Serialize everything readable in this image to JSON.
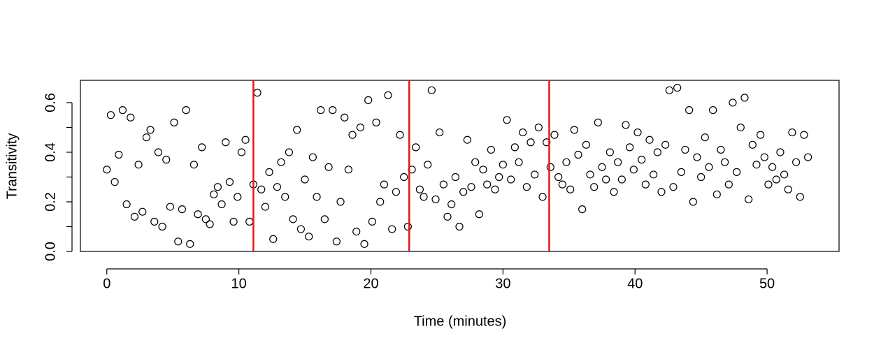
{
  "chart_data": {
    "type": "scatter",
    "x_label": "Time (minutes)",
    "y_label": "Transitivity",
    "xlim": [
      -2.0,
      55.45
    ],
    "ylim": [
      0,
      0.69
    ],
    "xticks": [
      0,
      10,
      20,
      30,
      40,
      50
    ],
    "yticks": [
      {
        "value": 0,
        "label": "0.0"
      },
      {
        "value": 0.2,
        "label": "0.2"
      },
      {
        "value": 0.4,
        "label": "0.4"
      },
      {
        "value": 0.6,
        "label": "0.6"
      }
    ],
    "y_minor_ticks": [
      0.1,
      0.3,
      0.5
    ],
    "vlines": [
      11.1,
      22.9,
      33.5
    ],
    "vline_color": "#e31a1c",
    "series": [
      {
        "color": "#000000",
        "x": [
          0,
          0.3,
          0.6,
          0.9,
          1.2,
          1.5,
          1.8,
          2.1,
          2.4,
          2.7,
          3,
          3.3,
          3.6,
          3.9,
          4.2,
          4.5,
          4.8,
          5.1,
          5.4,
          5.7,
          6,
          6.3,
          6.6,
          6.9,
          7.2,
          7.5,
          7.8,
          8.1,
          8.4,
          8.7,
          9,
          9.3,
          9.6,
          9.9,
          10.2,
          10.5,
          10.8,
          11.1,
          11.4,
          11.7,
          12,
          12.3,
          12.6,
          12.9,
          13.2,
          13.5,
          13.8,
          14.1,
          14.4,
          14.7,
          15,
          15.3,
          15.6,
          15.9,
          16.2,
          16.5,
          16.8,
          17.1,
          17.4,
          17.7,
          18,
          18.3,
          18.6,
          18.9,
          19.2,
          19.5,
          19.8,
          20.1,
          20.4,
          20.7,
          21,
          21.3,
          21.6,
          21.9,
          22.2,
          22.5,
          22.8,
          23.1,
          23.4,
          23.7,
          24,
          24.3,
          24.6,
          24.9,
          25.2,
          25.5,
          25.8,
          26.1,
          26.4,
          26.7,
          27,
          27.3,
          27.6,
          27.9,
          28.2,
          28.5,
          28.8,
          29.1,
          29.4,
          29.7,
          30,
          30.3,
          30.6,
          30.9,
          31.2,
          31.5,
          31.8,
          32.1,
          32.4,
          32.7,
          33,
          33.3,
          33.6,
          33.9,
          34.2,
          34.5,
          34.8,
          35.1,
          35.4,
          35.7,
          36,
          36.3,
          36.6,
          36.9,
          37.2,
          37.5,
          37.8,
          38.1,
          38.4,
          38.7,
          39,
          39.3,
          39.6,
          39.9,
          40.2,
          40.5,
          40.8,
          41.1,
          41.4,
          41.7,
          42,
          42.3,
          42.6,
          42.9,
          43.2,
          43.5,
          43.8,
          44.1,
          44.4,
          44.7,
          45,
          45.3,
          45.6,
          45.9,
          46.2,
          46.5,
          46.8,
          47.1,
          47.4,
          47.7,
          48,
          48.3,
          48.6,
          48.9,
          49.2,
          49.5,
          49.8,
          50.1,
          50.4,
          50.7,
          51,
          51.3,
          51.6,
          51.9,
          52.2,
          52.5,
          52.8,
          53.1
        ],
        "values": [
          0.33,
          0.55,
          0.28,
          0.39,
          0.57,
          0.19,
          0.54,
          0.14,
          0.35,
          0.16,
          0.46,
          0.49,
          0.12,
          0.4,
          0.1,
          0.37,
          0.18,
          0.52,
          0.04,
          0.17,
          0.57,
          0.03,
          0.35,
          0.15,
          0.42,
          0.13,
          0.11,
          0.23,
          0.26,
          0.19,
          0.44,
          0.28,
          0.12,
          0.22,
          0.4,
          0.45,
          0.12,
          0.27,
          0.64,
          0.25,
          0.18,
          0.32,
          0.05,
          0.26,
          0.36,
          0.22,
          0.4,
          0.13,
          0.49,
          0.09,
          0.29,
          0.06,
          0.38,
          0.22,
          0.57,
          0.13,
          0.34,
          0.57,
          0.04,
          0.2,
          0.54,
          0.33,
          0.47,
          0.08,
          0.5,
          0.03,
          0.61,
          0.12,
          0.52,
          0.2,
          0.27,
          0.63,
          0.09,
          0.24,
          0.47,
          0.3,
          0.1,
          0.33,
          0.42,
          0.25,
          0.22,
          0.35,
          0.65,
          0.21,
          0.48,
          0.27,
          0.14,
          0.19,
          0.3,
          0.1,
          0.24,
          0.45,
          0.26,
          0.36,
          0.15,
          0.33,
          0.27,
          0.41,
          0.25,
          0.3,
          0.35,
          0.53,
          0.29,
          0.42,
          0.36,
          0.48,
          0.26,
          0.44,
          0.31,
          0.5,
          0.22,
          0.44,
          0.34,
          0.47,
          0.3,
          0.27,
          0.36,
          0.25,
          0.49,
          0.39,
          0.17,
          0.43,
          0.31,
          0.26,
          0.52,
          0.34,
          0.29,
          0.4,
          0.24,
          0.36,
          0.29,
          0.51,
          0.42,
          0.33,
          0.48,
          0.37,
          0.27,
          0.45,
          0.31,
          0.4,
          0.24,
          0.43,
          0.65,
          0.26,
          0.66,
          0.32,
          0.41,
          0.57,
          0.2,
          0.38,
          0.3,
          0.46,
          0.34,
          0.57,
          0.23,
          0.41,
          0.36,
          0.27,
          0.6,
          0.32,
          0.5,
          0.62,
          0.21,
          0.43,
          0.35,
          0.47,
          0.38,
          0.27,
          0.34,
          0.29,
          0.4,
          0.31,
          0.25,
          0.48,
          0.36,
          0.22,
          0.47,
          0.38
        ]
      }
    ]
  }
}
